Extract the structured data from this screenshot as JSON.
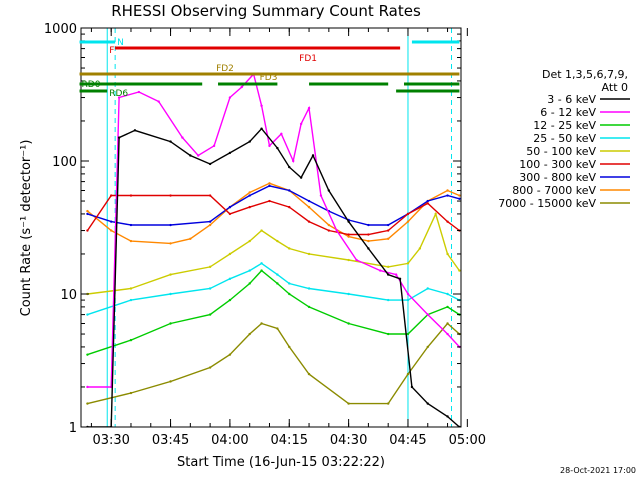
{
  "chart_data": {
    "type": "line",
    "title": "RHESSI Observing Summary Count Rates",
    "xlabel": "Start Time (16-Jun-15 03:22:22)",
    "ylabel": "Count Rate (s⁻¹ detector⁻¹)",
    "y_scale": "log",
    "ylim": [
      1,
      1000
    ],
    "x_range_minutes": [
      "03:22",
      "05:00"
    ],
    "x_ticks": [
      "03:30",
      "03:45",
      "04:00",
      "04:15",
      "04:30",
      "04:45",
      "05:00"
    ],
    "y_ticks": [
      "1",
      "10",
      "100",
      "1000"
    ],
    "legend_header": [
      "Det 1,3,5,6,7,9,",
      "Att 0"
    ],
    "legend_placement": "right",
    "flags": [
      {
        "label": "N",
        "color": "#00e5ee",
        "segments": [
          [
            "03:22",
            "03:31"
          ],
          [
            "04:46",
            "04:58"
          ]
        ]
      },
      {
        "label": "F",
        "color": "#e00000",
        "segments": [
          [
            "03:31",
            "04:43"
          ]
        ]
      },
      {
        "label": "FD1",
        "color": "#e00000",
        "segments": [
          [
            "03:31",
            "04:43"
          ]
        ]
      },
      {
        "label": "FD2",
        "color": "#a08000",
        "segments": [
          [
            "03:22",
            "04:58"
          ]
        ]
      },
      {
        "label": "FD3",
        "color": "#a08000",
        "segments": []
      },
      {
        "label": "RD0",
        "color": "#008000",
        "segments": [
          [
            "03:22",
            "03:53"
          ],
          [
            "03:57",
            "04:12"
          ],
          [
            "04:20",
            "04:40"
          ],
          [
            "04:44",
            "04:58"
          ]
        ]
      },
      {
        "label": "RD6",
        "color": "#008000",
        "segments": [
          [
            "03:22",
            "03:29"
          ],
          [
            "04:42",
            "04:58"
          ]
        ]
      }
    ],
    "series": [
      {
        "name": "3 - 6 keV",
        "color": "#000000",
        "x": [
          "03:24",
          "03:30",
          "03:32",
          "03:36",
          "03:45",
          "03:50",
          "03:55",
          "04:00",
          "04:05",
          "04:08",
          "04:12",
          "04:15",
          "04:18",
          "04:21",
          "04:25",
          "04:30",
          "04:35",
          "04:40",
          "04:43",
          "04:46",
          "04:50",
          "04:55",
          "04:58"
        ],
        "values": [
          1,
          1,
          150,
          170,
          140,
          110,
          95,
          115,
          140,
          175,
          125,
          90,
          75,
          110,
          60,
          35,
          22,
          14,
          13,
          2,
          1.5,
          1.2,
          1
        ]
      },
      {
        "name": "6 - 12 keV",
        "color": "#ff00ff",
        "x": [
          "03:24",
          "03:30",
          "03:32",
          "03:37",
          "03:42",
          "03:48",
          "03:52",
          "03:56",
          "04:00",
          "04:03",
          "04:06",
          "04:08",
          "04:10",
          "04:13",
          "04:16",
          "04:18",
          "04:20",
          "04:23",
          "04:27",
          "04:32",
          "04:38",
          "04:42",
          "04:45",
          "04:50",
          "04:55",
          "04:58"
        ],
        "values": [
          2,
          2,
          300,
          330,
          280,
          150,
          110,
          130,
          300,
          360,
          450,
          260,
          130,
          160,
          100,
          190,
          250,
          55,
          30,
          18,
          15,
          14,
          10,
          7,
          5,
          4
        ]
      },
      {
        "name": "12 - 25 keV",
        "color": "#00cc00",
        "x": [
          "03:24",
          "03:35",
          "03:45",
          "03:55",
          "04:00",
          "04:05",
          "04:08",
          "04:12",
          "04:15",
          "04:20",
          "04:30",
          "04:40",
          "04:45",
          "04:50",
          "04:55",
          "04:58"
        ],
        "values": [
          3.5,
          4.5,
          6,
          7,
          9,
          12,
          15,
          12,
          10,
          8,
          6,
          5,
          5,
          7,
          8,
          7
        ]
      },
      {
        "name": "25 - 50 keV",
        "color": "#00e5ee",
        "x": [
          "03:24",
          "03:35",
          "03:45",
          "03:55",
          "04:00",
          "04:05",
          "04:08",
          "04:12",
          "04:15",
          "04:20",
          "04:30",
          "04:40",
          "04:45",
          "04:50",
          "04:55",
          "04:58"
        ],
        "values": [
          7,
          9,
          10,
          11,
          13,
          15,
          17,
          14,
          12,
          11,
          10,
          9,
          9,
          11,
          10,
          9
        ]
      },
      {
        "name": "50 - 100 keV",
        "color": "#cccc00",
        "x": [
          "03:24",
          "03:35",
          "03:45",
          "03:55",
          "04:00",
          "04:05",
          "04:08",
          "04:12",
          "04:15",
          "04:20",
          "04:30",
          "04:40",
          "04:45",
          "04:48",
          "04:52",
          "04:55",
          "04:58"
        ],
        "values": [
          10,
          11,
          14,
          16,
          20,
          25,
          30,
          25,
          22,
          20,
          18,
          16,
          17,
          22,
          40,
          20,
          15
        ]
      },
      {
        "name": "100 - 300 keV",
        "color": "#e00000",
        "x": [
          "03:24",
          "03:30",
          "03:35",
          "03:45",
          "03:55",
          "04:00",
          "04:05",
          "04:10",
          "04:15",
          "04:20",
          "04:25",
          "04:30",
          "04:35",
          "04:40",
          "04:45",
          "04:50",
          "04:55",
          "04:58"
        ],
        "values": [
          30,
          55,
          55,
          55,
          55,
          40,
          45,
          50,
          45,
          35,
          30,
          28,
          28,
          30,
          40,
          48,
          35,
          30
        ]
      },
      {
        "name": "300 - 800 keV",
        "color": "#0000dd",
        "x": [
          "03:24",
          "03:30",
          "03:35",
          "03:45",
          "03:55",
          "04:00",
          "04:05",
          "04:10",
          "04:15",
          "04:20",
          "04:25",
          "04:30",
          "04:35",
          "04:40",
          "04:45",
          "04:50",
          "04:55",
          "04:58"
        ],
        "values": [
          40,
          35,
          33,
          33,
          35,
          45,
          55,
          65,
          60,
          50,
          42,
          36,
          33,
          33,
          40,
          50,
          55,
          52
        ]
      },
      {
        "name": "800 - 7000 keV",
        "color": "#ff8800",
        "x": [
          "03:24",
          "03:30",
          "03:35",
          "03:45",
          "03:50",
          "03:55",
          "04:00",
          "04:05",
          "04:10",
          "04:15",
          "04:20",
          "04:25",
          "04:30",
          "04:35",
          "04:40",
          "04:45",
          "04:50",
          "04:55",
          "04:58"
        ],
        "values": [
          42,
          30,
          25,
          24,
          26,
          33,
          45,
          58,
          68,
          60,
          45,
          33,
          27,
          25,
          26,
          35,
          50,
          60,
          55
        ]
      },
      {
        "name": "7000 - 15000 keV",
        "color": "#8b8b00",
        "x": [
          "03:24",
          "03:35",
          "03:45",
          "03:55",
          "04:00",
          "04:05",
          "04:08",
          "04:12",
          "04:15",
          "04:20",
          "04:30",
          "04:40",
          "04:45",
          "04:50",
          "04:55",
          "04:58"
        ],
        "values": [
          1.5,
          1.8,
          2.2,
          2.8,
          3.5,
          5,
          6,
          5.5,
          4,
          2.5,
          1.5,
          1.5,
          2.5,
          4,
          6,
          5
        ]
      }
    ]
  },
  "footer": {
    "generated": "28-Oct-2021 17:00"
  }
}
